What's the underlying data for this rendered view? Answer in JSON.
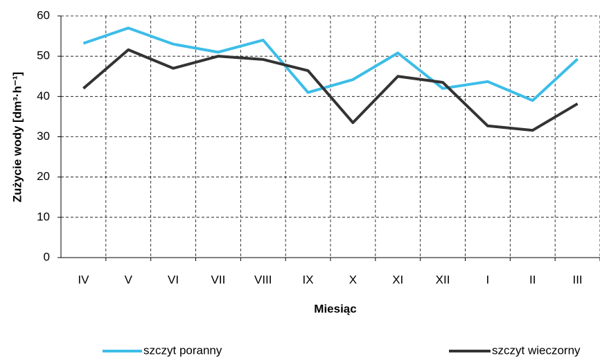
{
  "chart_data": {
    "type": "line",
    "y_label": "Zużycie wody [dm³·h⁻¹]",
    "x_label": "Miesiąc",
    "categories": [
      "IV",
      "V",
      "VI",
      "VII",
      "VIII",
      "IX",
      "X",
      "XI",
      "XII",
      "I",
      "II",
      "III"
    ],
    "series": [
      {
        "name": "szczyt poranny",
        "color": "#3cbde8",
        "values": [
          53.2,
          57,
          53,
          51,
          54,
          41,
          44.2,
          50.8,
          42,
          43.7,
          39,
          49.3
        ]
      },
      {
        "name": "szczyt wieczorny",
        "color": "#333333",
        "values": [
          42,
          51.6,
          47,
          50,
          49.2,
          46.4,
          33.5,
          45,
          43.5,
          32.7,
          31.6,
          38.2
        ]
      }
    ],
    "ylim": [
      0,
      60
    ],
    "yticks": [
      0,
      10,
      20,
      30,
      40,
      50,
      60
    ],
    "grid": true
  }
}
